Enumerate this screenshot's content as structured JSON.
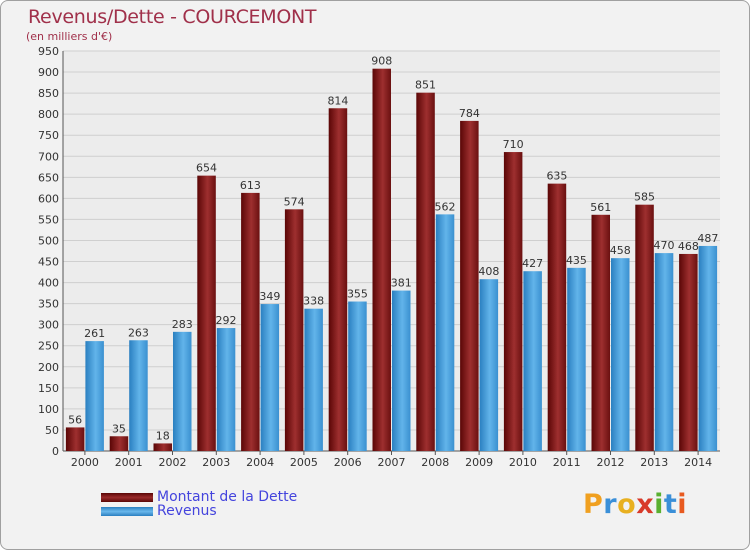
{
  "chart_data": {
    "type": "bar",
    "title": "Revenus/Dette - COURCEMONT",
    "subtitle": "(en milliers d'€)",
    "xlabel": "",
    "ylabel": "",
    "ylim": [
      0,
      950
    ],
    "ytick_step": 50,
    "grid": true,
    "categories": [
      "2000",
      "2001",
      "2002",
      "2003",
      "2004",
      "2005",
      "2006",
      "2007",
      "2008",
      "2009",
      "2010",
      "2011",
      "2012",
      "2013",
      "2014"
    ],
    "series": [
      {
        "name": "Montant de la Dette",
        "color": "#8b1a1a",
        "values": [
          56,
          35,
          18,
          654,
          613,
          574,
          814,
          908,
          851,
          784,
          710,
          635,
          561,
          585,
          468
        ]
      },
      {
        "name": "Revenus",
        "color": "#4aa3df",
        "values": [
          261,
          263,
          283,
          292,
          349,
          338,
          355,
          381,
          562,
          408,
          427,
          435,
          458,
          470,
          487
        ]
      }
    ],
    "legend_position": "bottom-left"
  },
  "logo": {
    "letters": [
      "P",
      "r",
      "o",
      "x",
      "i",
      "t",
      "i"
    ],
    "colors": [
      "#f0a020",
      "#3a8fd8",
      "#e8b020",
      "#d83a2a",
      "#5ab030",
      "#3a8fd8",
      "#e85a20"
    ]
  }
}
